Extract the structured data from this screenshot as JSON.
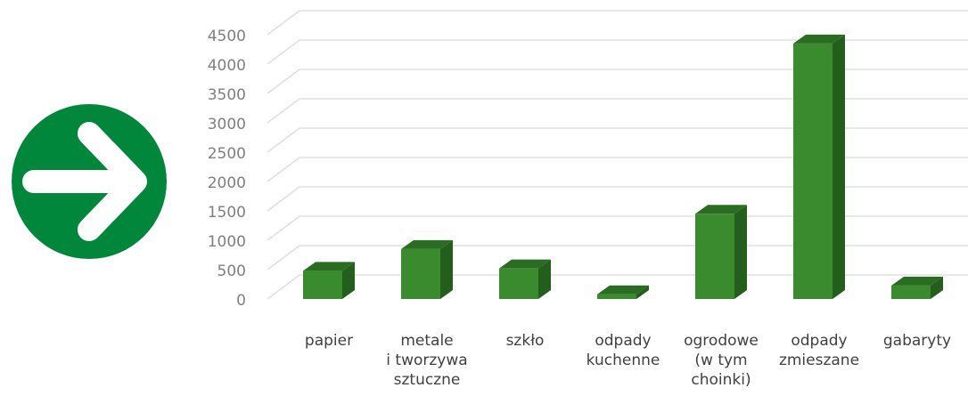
{
  "arrow_icon": {
    "icon": "arrow-right-circle-icon",
    "color": "#00873c",
    "arrow_color": "#ffffff"
  },
  "colors": {
    "bar_front": "#3a8a2e",
    "bar_side": "#245e1c",
    "bar_top": "#2a6d22",
    "grid": "#d9d9d9",
    "tick_text": "#7f7f7f",
    "category_text": "#404040"
  },
  "chart_data": {
    "type": "bar",
    "style": "3d-column",
    "categories": [
      [
        "papier"
      ],
      [
        "metale",
        "i tworzywa",
        "sztuczne"
      ],
      [
        "szkło"
      ],
      [
        "odpady",
        "kuchenne"
      ],
      [
        "ogrodowe",
        "(w tym",
        "choinki)"
      ],
      [
        "odpady",
        "zmieszane"
      ],
      [
        "gabaryty"
      ]
    ],
    "values": [
      480,
      850,
      520,
      80,
      1450,
      4350,
      230
    ],
    "y_ticks": [
      "0",
      "500",
      "1000",
      "1500",
      "2000",
      "2500",
      "3000",
      "3500",
      "4000",
      "4500"
    ],
    "ylim": [
      0,
      4500
    ],
    "grid": true,
    "legend": "none"
  }
}
